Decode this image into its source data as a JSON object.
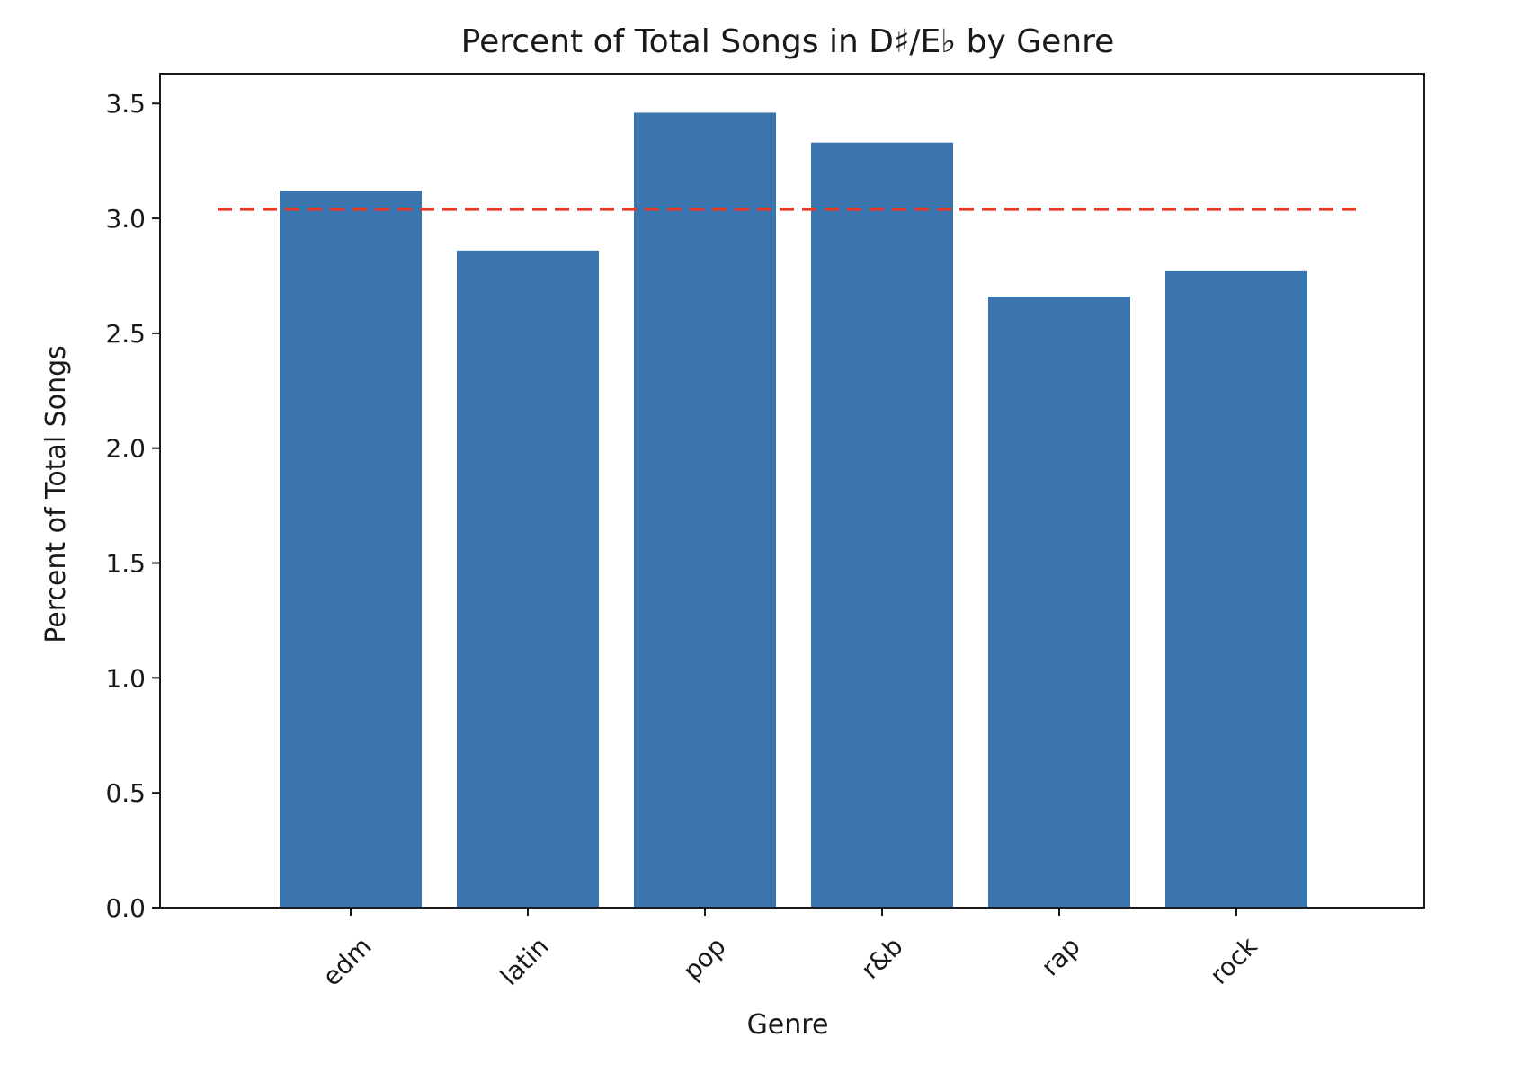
{
  "chart_data": {
    "type": "bar",
    "title": "Percent of Total Songs in D♯/E♭ by Genre",
    "xlabel": "Genre",
    "ylabel": "Percent of Total Songs",
    "categories": [
      "edm",
      "latin",
      "pop",
      "r&b",
      "rap",
      "rock"
    ],
    "values": [
      3.12,
      2.86,
      3.46,
      3.33,
      2.66,
      2.77
    ],
    "ylim": [
      0,
      3.63
    ],
    "yticks": [
      0.0,
      0.5,
      1.0,
      1.5,
      2.0,
      2.5,
      3.0,
      3.5
    ],
    "ytick_labels": [
      "0.0",
      "0.5",
      "1.0",
      "1.5",
      "2.0",
      "2.5",
      "3.0",
      "3.5"
    ],
    "reference_line": {
      "y": 3.04,
      "style": "dashed",
      "color": "#e8392b"
    },
    "bar_color": "#3b75af",
    "grid": false,
    "legend": "none"
  }
}
